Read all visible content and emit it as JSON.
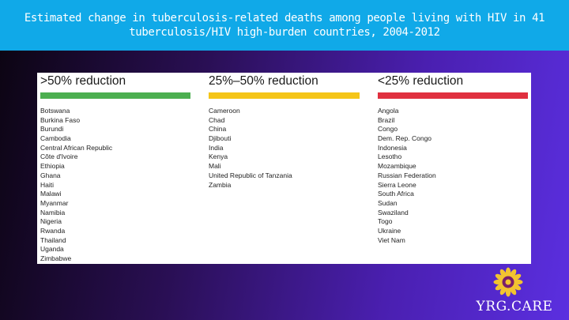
{
  "title": {
    "line1": "Estimated change in tuberculosis-related deaths among people living with HIV in 41",
    "line2": "tuberculosis/HIV high-burden countries, 2004-2012"
  },
  "columns": [
    {
      "heading": ">50% reduction",
      "color": "#4caf50",
      "countries": [
        "Botswana",
        "Burkina Faso",
        "Burundi",
        "Cambodia",
        "Central African Republic",
        "Côte d'Ivoire",
        "Ethiopia",
        "Ghana",
        "Haiti",
        "Malawi",
        "Myanmar",
        "Namibia",
        "Nigeria",
        "Rwanda",
        "Thailand",
        "Uganda",
        "Zimbabwe"
      ]
    },
    {
      "heading": "25%–50% reduction",
      "color": "#f5c518",
      "countries": [
        "Cameroon",
        "Chad",
        "China",
        "Djibouti",
        "India",
        "Kenya",
        "Mali",
        "United Republic of Tanzania",
        "Zambia"
      ]
    },
    {
      "heading": "<25% reduction",
      "color": "#e0303f",
      "countries": [
        "Angola",
        "Brazil",
        "Congo",
        "Dem. Rep. Congo",
        "Indonesia",
        "Lesotho",
        "Mozambique",
        "Russian Federation",
        "Sierra Leone",
        "South Africa",
        "Sudan",
        "Swaziland",
        "Togo",
        "Ukraine",
        "Viet Nam"
      ]
    }
  ],
  "logo": {
    "text": "YRG.CARE",
    "icon": "sunflower-icon",
    "petal_color": "#f2c430",
    "center_color": "#7a1f6a"
  }
}
